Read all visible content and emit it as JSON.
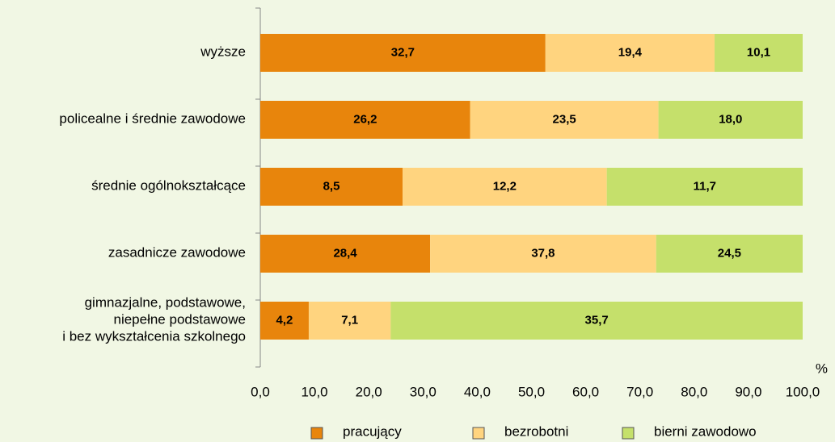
{
  "chart_data": {
    "type": "bar",
    "orientation": "horizontal",
    "stack": "percent",
    "unit_label": "%",
    "categories": [
      "wyższe",
      "policealne i średnie zawodowe",
      "średnie ogólnokształcące",
      "zasadnicze zawodowe",
      "gimnazjalne, podstawowe,\nniepełne podstawowe\ni bez wykształcenia szkolnego"
    ],
    "series": [
      {
        "name": "pracujący",
        "color": "#e8850c",
        "values": [
          32.7,
          26.2,
          8.5,
          28.4,
          4.2
        ],
        "value_labels": [
          "32,7",
          "26,2",
          "8,5",
          "28,4",
          "4,2"
        ]
      },
      {
        "name": "bezrobotni",
        "color": "#ffd47f",
        "values": [
          19.4,
          23.5,
          12.2,
          37.8,
          7.1
        ],
        "value_labels": [
          "19,4",
          "23,5",
          "12,2",
          "37,8",
          "7,1"
        ]
      },
      {
        "name": "bierni zawodowo",
        "color": "#c5e06b",
        "values": [
          10.1,
          18.0,
          11.7,
          24.5,
          35.7
        ],
        "value_labels": [
          "10,1",
          "18,0",
          "11,7",
          "24,5",
          "35,7"
        ]
      }
    ],
    "xlim": [
      0,
      100
    ],
    "xticks": [
      {
        "value": 0,
        "label": "0,0"
      },
      {
        "value": 10,
        "label": "10,0"
      },
      {
        "value": 20,
        "label": "20,0"
      },
      {
        "value": 30,
        "label": "30,0"
      },
      {
        "value": 40,
        "label": "40,0"
      },
      {
        "value": 50,
        "label": "50,0"
      },
      {
        "value": 60,
        "label": "60,0"
      },
      {
        "value": 70,
        "label": "70,0"
      },
      {
        "value": 80,
        "label": "80,0"
      },
      {
        "value": 90,
        "label": "90,0"
      },
      {
        "value": 100,
        "label": "100,0"
      }
    ],
    "legend": "bottom"
  }
}
